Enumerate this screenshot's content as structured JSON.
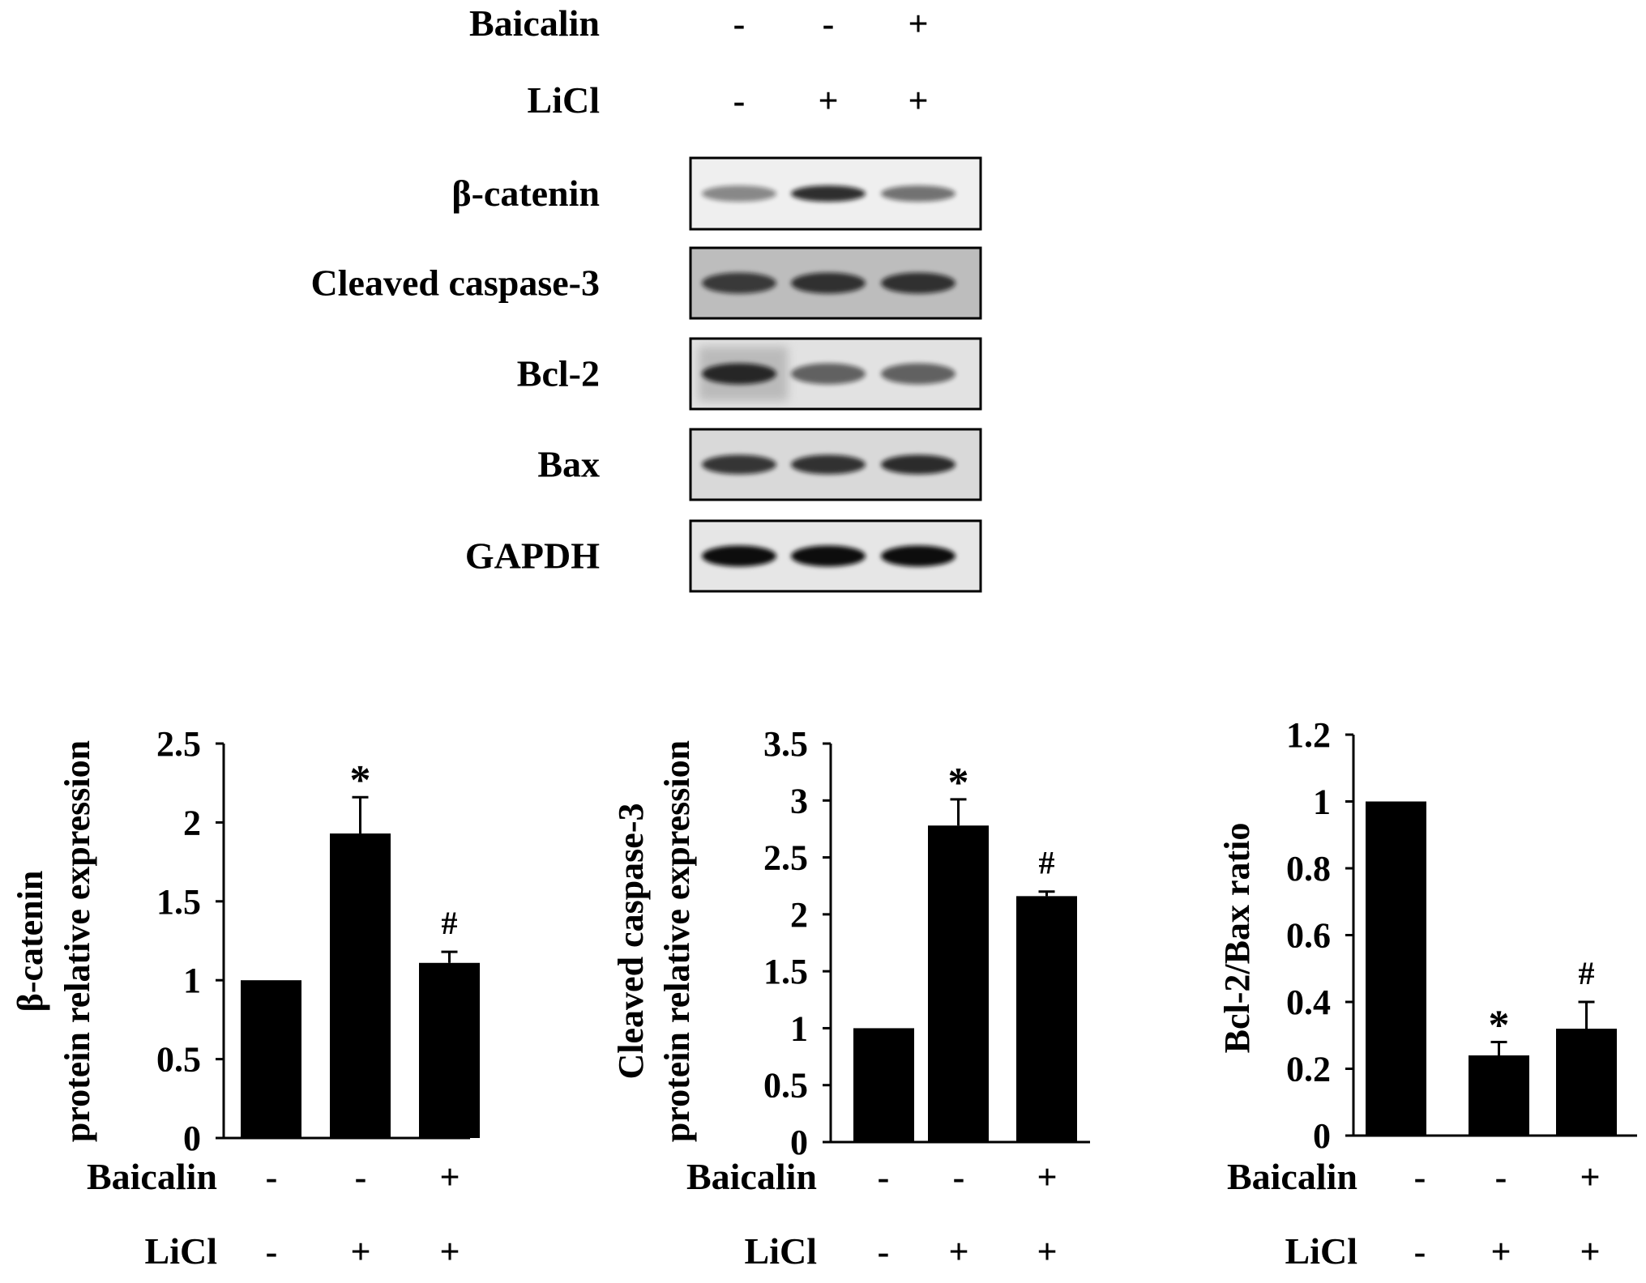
{
  "blot": {
    "treatment_rows": [
      {
        "label": "Baicalin",
        "lanes": [
          "-",
          "-",
          "+"
        ]
      },
      {
        "label": "LiCl",
        "lanes": [
          "-",
          "+",
          "+"
        ]
      }
    ],
    "bands": [
      {
        "label": "β-catenin"
      },
      {
        "label": "Cleaved caspase-3"
      },
      {
        "label": "Bcl-2"
      },
      {
        "label": "Bax"
      },
      {
        "label": "GAPDH"
      }
    ]
  },
  "chart_data": [
    {
      "type": "bar",
      "ylabel": [
        "β-catenin",
        "protein relative expression"
      ],
      "ylim": [
        0,
        2.5
      ],
      "yticks": [
        "0",
        "0.5",
        "1",
        "1.5",
        "2",
        "2.5"
      ],
      "values": [
        1.0,
        1.93,
        1.11
      ],
      "errors": [
        0,
        0.23,
        0.07
      ],
      "markers": [
        "",
        "*",
        "#"
      ],
      "treatment_rows": [
        {
          "label": "Baicalin",
          "lanes": [
            "-",
            "-",
            "+"
          ]
        },
        {
          "label": "LiCl",
          "lanes": [
            "-",
            "+",
            "+"
          ]
        }
      ]
    },
    {
      "type": "bar",
      "ylabel": [
        "Cleaved caspase-3",
        "protein relative expression"
      ],
      "ylim": [
        0,
        3.5
      ],
      "yticks": [
        "0",
        "0.5",
        "1",
        "1.5",
        "2",
        "2.5",
        "3",
        "3.5"
      ],
      "values": [
        1.0,
        2.78,
        2.16
      ],
      "errors": [
        0,
        0.23,
        0.04
      ],
      "markers": [
        "",
        "*",
        "#"
      ],
      "treatment_rows": [
        {
          "label": "Baicalin",
          "lanes": [
            "-",
            "-",
            "+"
          ]
        },
        {
          "label": "LiCl",
          "lanes": [
            "-",
            "+",
            "+"
          ]
        }
      ]
    },
    {
      "type": "bar",
      "ylabel": [
        "Bcl-2/Bax ratio"
      ],
      "ylim": [
        0,
        1.2
      ],
      "yticks": [
        "0",
        "0.2",
        "0.4",
        "0.6",
        "0.8",
        "1",
        "1.2"
      ],
      "values": [
        1.0,
        0.24,
        0.32
      ],
      "errors": [
        0,
        0.04,
        0.08
      ],
      "markers": [
        "",
        "*",
        "#"
      ],
      "treatment_rows": [
        {
          "label": "Baicalin",
          "lanes": [
            "-",
            "-",
            "+"
          ]
        },
        {
          "label": "LiCl",
          "lanes": [
            "-",
            "+",
            "+"
          ]
        }
      ]
    }
  ]
}
